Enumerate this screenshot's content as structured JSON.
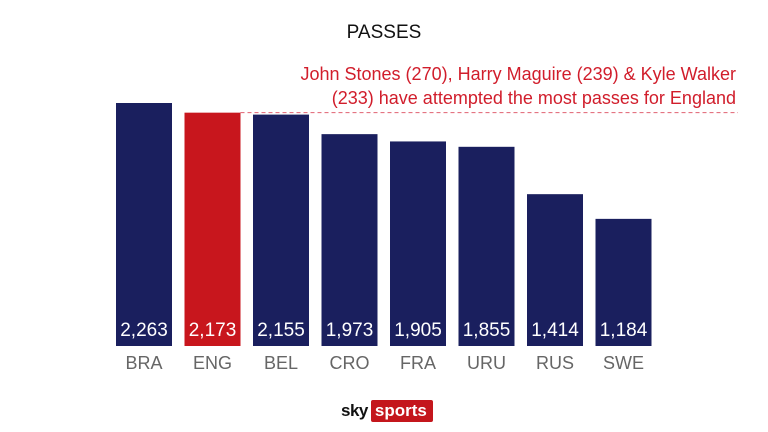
{
  "chart_data": {
    "type": "bar",
    "title": "PASSES",
    "categories": [
      "BRA",
      "ENG",
      "BEL",
      "CRO",
      "FRA",
      "URU",
      "RUS",
      "SWE"
    ],
    "values": [
      2263,
      2173,
      2155,
      1973,
      1905,
      1855,
      1414,
      1184
    ],
    "value_labels": [
      "2,263",
      "2,173",
      "2,155",
      "1,973",
      "1,905",
      "1,855",
      "1,414",
      "1,184"
    ],
    "highlight_category": "ENG",
    "colors": {
      "bar": "#1a1f5e",
      "highlight": "#c8161d",
      "annotation": "#d11d2b"
    },
    "annotation": {
      "lines": [
        "John Stones (270),  Harry Maguire (239) & Kyle Walker",
        "(233) have attempted the most passes for England"
      ],
      "reference_value": 2173,
      "line_style": "dashed"
    },
    "ylim": [
      0,
      2263
    ],
    "grid": false,
    "legend": "none"
  },
  "branding": {
    "logo_sky": "sky",
    "logo_sports": "sports"
  }
}
